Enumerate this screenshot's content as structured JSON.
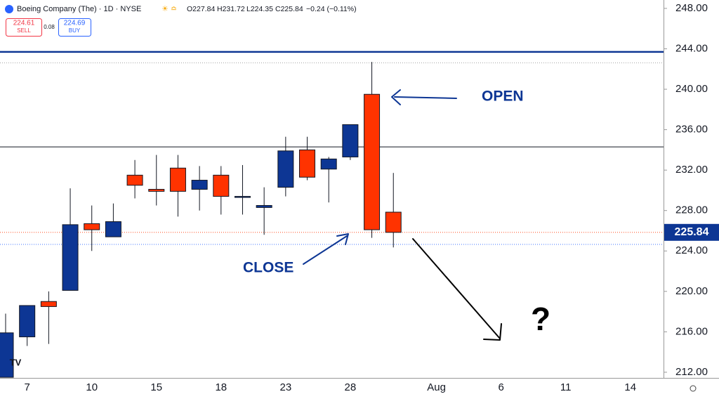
{
  "header": {
    "symbol": "Boeing Company (The) · 1D · NYSE",
    "open": "O227.84",
    "high": "H231.72",
    "low": "L224.35",
    "close": "C225.84",
    "change": "−0.24 (−0.11%)",
    "sell_price": "224.61",
    "sell_label": "SELL",
    "spread": "0.08",
    "buy_price": "224.69",
    "buy_label": "BUY"
  },
  "chart_data": {
    "type": "candlestick",
    "categories": [
      null,
      "7",
      null,
      null,
      "10",
      null,
      null,
      "15",
      null,
      null,
      "18",
      null,
      null,
      "23",
      null,
      null,
      "28",
      null,
      null,
      null,
      "Aug",
      null,
      null,
      "6",
      null,
      null,
      "11",
      null,
      null,
      "14",
      null
    ],
    "open": [
      211.5,
      215.5,
      219.0,
      220.1,
      226.7,
      225.4,
      231.5,
      230.1,
      232.2,
      230.1,
      231.5,
      229.3,
      228.3,
      230.3,
      234.0,
      232.1,
      233.3,
      239.5,
      227.84,
      null,
      null,
      null,
      null,
      null,
      null,
      null,
      null,
      null,
      null,
      null,
      null
    ],
    "high": [
      217.8,
      218.6,
      220.0,
      230.2,
      228.5,
      228.7,
      233.0,
      233.5,
      233.5,
      232.4,
      232.4,
      232.5,
      230.3,
      235.3,
      235.3,
      233.3,
      236.5,
      242.7,
      231.72,
      null,
      null,
      null,
      null,
      null,
      null,
      null,
      null,
      null,
      null,
      null,
      null
    ],
    "low": [
      211.5,
      214.6,
      214.8,
      220.1,
      224.0,
      225.4,
      229.2,
      228.5,
      227.4,
      228.0,
      227.6,
      227.6,
      225.6,
      229.4,
      231.0,
      228.8,
      233.0,
      225.3,
      224.35,
      null,
      null,
      null,
      null,
      null,
      null,
      null,
      null,
      null,
      null,
      null,
      null
    ],
    "close": [
      215.9,
      218.6,
      218.5,
      226.6,
      226.1,
      226.9,
      230.5,
      229.9,
      229.9,
      231.0,
      229.4,
      229.4,
      228.5,
      233.9,
      231.3,
      233.1,
      236.5,
      226.1,
      225.84,
      null,
      null,
      null,
      null,
      null,
      null,
      null,
      null,
      null,
      null,
      null,
      null
    ],
    "up_color": "#0d3694",
    "down_color": "#ff3300",
    "ylim": [
      211.44,
      248.83
    ],
    "yticks": [
      {
        "value": 212,
        "label": "212.00"
      },
      {
        "value": 216,
        "label": "216.00"
      },
      {
        "value": 220,
        "label": "220.00"
      },
      {
        "value": 224,
        "label": "224.00"
      },
      {
        "value": 228,
        "label": "228.00"
      },
      {
        "value": 232,
        "label": "232.00"
      },
      {
        "value": 236,
        "label": "236.00"
      },
      {
        "value": 240,
        "label": "240.00"
      },
      {
        "value": 244,
        "label": "244.00"
      },
      {
        "value": 248,
        "label": "248.00"
      }
    ],
    "last_price": {
      "value": 225.84,
      "label": "225.84"
    },
    "levels": [
      243.7,
      234.3
    ],
    "dotted_levels": [
      242.6,
      224.65
    ],
    "annotations": {
      "open": "OPEN",
      "close": "CLOSE",
      "question": "?"
    }
  }
}
